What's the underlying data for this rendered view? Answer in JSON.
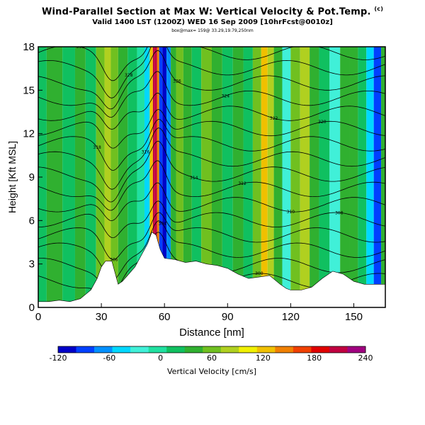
{
  "chart_data": {
    "type": "heatmap",
    "title": "Wind-Parallel Section at Max W: Vertical Velocity & Pot.Temp.",
    "title_mark": "(c)",
    "subtitle": "Valid 1400 LST (1200Z) WED 16 Sep 2009 [10hrFcst@0010z]",
    "subsubtitle": "box@max= 159@ 33.29,19.79,250nm",
    "xlabel": "Distance [nm]",
    "ylabel": "Height [Kft MSL]",
    "xlim": [
      0,
      165
    ],
    "ylim": [
      0,
      18
    ],
    "xticks": [
      0,
      30,
      60,
      90,
      120,
      150
    ],
    "yticks": [
      0,
      3,
      6,
      9,
      12,
      15,
      18
    ],
    "colorbar": {
      "label": "Vertical Velocity [cm/s]",
      "ticks": [
        -120,
        -60,
        0,
        60,
        120,
        180,
        240
      ],
      "range": [
        -120,
        240
      ],
      "colors": [
        "#0000c8",
        "#0040ff",
        "#0090ff",
        "#00d8ff",
        "#40f0d8",
        "#20e0a0",
        "#10c060",
        "#30b030",
        "#70c020",
        "#b0d020",
        "#f0f000",
        "#f0c000",
        "#f08000",
        "#f04000",
        "#e00000",
        "#c00040",
        "#a00080"
      ]
    },
    "terrain": [
      [
        0,
        0.4
      ],
      [
        5,
        0.4
      ],
      [
        10,
        0.5
      ],
      [
        15,
        0.4
      ],
      [
        20,
        0.6
      ],
      [
        25,
        1.2
      ],
      [
        28,
        2.0
      ],
      [
        30,
        2.8
      ],
      [
        32,
        3.2
      ],
      [
        35,
        3.2
      ],
      [
        38,
        1.6
      ],
      [
        40,
        1.8
      ],
      [
        43,
        2.3
      ],
      [
        46,
        2.8
      ],
      [
        49,
        3.6
      ],
      [
        52,
        4.4
      ],
      [
        54,
        5.2
      ],
      [
        56,
        5.0
      ],
      [
        58,
        4.0
      ],
      [
        60,
        3.4
      ],
      [
        65,
        3.3
      ],
      [
        70,
        3.1
      ],
      [
        75,
        3.2
      ],
      [
        80,
        3.0
      ],
      [
        85,
        2.9
      ],
      [
        90,
        2.7
      ],
      [
        95,
        2.3
      ],
      [
        100,
        2.0
      ],
      [
        105,
        2.1
      ],
      [
        110,
        2.2
      ],
      [
        115,
        1.6
      ],
      [
        118,
        1.3
      ],
      [
        120,
        1.2
      ],
      [
        125,
        1.2
      ],
      [
        130,
        1.4
      ],
      [
        135,
        2.0
      ],
      [
        140,
        2.5
      ],
      [
        145,
        2.3
      ],
      [
        150,
        1.8
      ],
      [
        155,
        1.6
      ],
      [
        160,
        1.6
      ],
      [
        165,
        1.6
      ]
    ],
    "w_columns": [
      {
        "x": 0,
        "w": 10
      },
      {
        "x": 8,
        "w": 30
      },
      {
        "x": 15,
        "w": 20
      },
      {
        "x": 20,
        "w": 40
      },
      {
        "x": 25,
        "w": 25
      },
      {
        "x": 30,
        "w": 55
      },
      {
        "x": 33,
        "w": 90
      },
      {
        "x": 36,
        "w": 70
      },
      {
        "x": 40,
        "w": 35
      },
      {
        "x": 45,
        "w": 20
      },
      {
        "x": 49,
        "w": 5
      },
      {
        "x": 52,
        "w": -40
      },
      {
        "x": 54,
        "w": 120
      },
      {
        "x": 55,
        "w": 210
      },
      {
        "x": 56,
        "w": 200
      },
      {
        "x": 57,
        "w": 150
      },
      {
        "x": 58,
        "w": -90
      },
      {
        "x": 60,
        "w": -110
      },
      {
        "x": 62,
        "w": -60
      },
      {
        "x": 64,
        "w": 30
      },
      {
        "x": 67,
        "w": 70
      },
      {
        "x": 71,
        "w": 40
      },
      {
        "x": 75,
        "w": 20
      },
      {
        "x": 80,
        "w": 50
      },
      {
        "x": 85,
        "w": 30
      },
      {
        "x": 90,
        "w": 20
      },
      {
        "x": 95,
        "w": 40
      },
      {
        "x": 100,
        "w": 25
      },
      {
        "x": 104,
        "w": 60
      },
      {
        "x": 108,
        "w": 130
      },
      {
        "x": 110,
        "w": 80
      },
      {
        "x": 114,
        "w": 30
      },
      {
        "x": 118,
        "w": -20
      },
      {
        "x": 122,
        "w": 50
      },
      {
        "x": 127,
        "w": 90
      },
      {
        "x": 131,
        "w": 40
      },
      {
        "x": 136,
        "w": 20
      },
      {
        "x": 141,
        "w": -30
      },
      {
        "x": 146,
        "w": 30
      },
      {
        "x": 150,
        "w": 45
      },
      {
        "x": 154,
        "w": 20
      },
      {
        "x": 158,
        "w": -50
      },
      {
        "x": 161,
        "w": -80
      },
      {
        "x": 165,
        "w": 30
      }
    ],
    "theta_contour_labels": [
      "330",
      "328",
      "326",
      "324",
      "322",
      "320",
      "318",
      "316",
      "314",
      "312",
      "310",
      "308",
      "306",
      "304",
      "302",
      "300"
    ]
  }
}
